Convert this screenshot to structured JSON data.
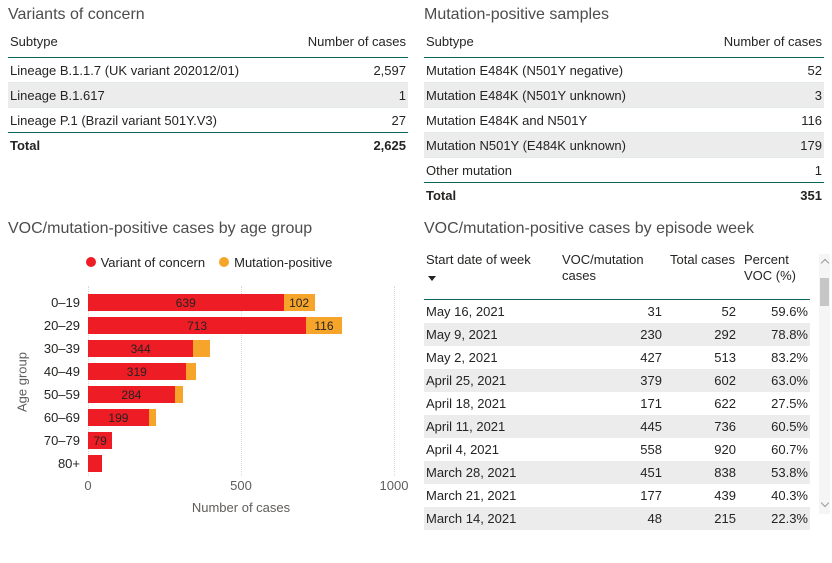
{
  "colors": {
    "accent_line_teal": "#0e6360",
    "voc_red": "#ee1c25",
    "mutation_orange": "#f7a52a",
    "row_alt_bg": "#ececec",
    "title_text": "#4d4d4d",
    "body_text": "#252423",
    "axis_text": "#605e5c"
  },
  "chart_data": [
    {
      "id": "voc_table",
      "type": "table",
      "title": "Variants of concern",
      "columns": [
        "Subtype",
        "Number of cases"
      ],
      "rows": [
        [
          "Lineage B.1.1.7 (UK variant 202012/01)",
          "2,597"
        ],
        [
          "Lineage B.1.617",
          "1"
        ],
        [
          "Lineage P.1 (Brazil variant 501Y.V3)",
          "27"
        ]
      ],
      "total_row": [
        "Total",
        "2,625"
      ]
    },
    {
      "id": "mutation_table",
      "type": "table",
      "title": "Mutation-positive samples",
      "columns": [
        "Subtype",
        "Number of cases"
      ],
      "rows": [
        [
          "Mutation E484K (N501Y negative)",
          "52"
        ],
        [
          "Mutation E484K (N501Y unknown)",
          "3"
        ],
        [
          "Mutation E484K and N501Y",
          "116"
        ],
        [
          "Mutation N501Y (E484K unknown)",
          "179"
        ],
        [
          "Other mutation",
          "1"
        ]
      ],
      "total_row": [
        "Total",
        "351"
      ]
    },
    {
      "id": "age_chart",
      "type": "bar",
      "orientation": "horizontal",
      "stacked": true,
      "title": "VOC/mutation-positive cases by age group",
      "categories": [
        "0–19",
        "20–29",
        "30–39",
        "40–49",
        "50–59",
        "60–69",
        "70–79",
        "80+"
      ],
      "series": [
        {
          "name": "Variant of concern",
          "color": "#ee1c25",
          "values": [
            639,
            713,
            344,
            319,
            284,
            199,
            79,
            45
          ],
          "bar_labels": [
            "639",
            "713",
            "344",
            "319",
            "284",
            "199",
            "79",
            ""
          ]
        },
        {
          "name": "Mutation-positive",
          "color": "#f7a52a",
          "values": [
            102,
            116,
            55,
            33,
            27,
            25,
            0,
            0
          ],
          "bar_labels": [
            "102",
            "116",
            "",
            "",
            "",
            "",
            "",
            ""
          ]
        }
      ],
      "xlabel": "Number of cases",
      "ylabel": "Age group",
      "xlim": [
        0,
        1000
      ],
      "x_ticks": [
        0,
        500,
        1000
      ],
      "gridlines": "vertical-dotted",
      "legend_position": "top"
    },
    {
      "id": "week_table",
      "type": "table",
      "title": "VOC/mutation-positive cases by episode week",
      "columns": [
        "Start date of week",
        "VOC/mutation cases",
        "Total cases",
        "Percent VOC (%)"
      ],
      "sorted_by": "Start date of week",
      "sort_direction": "descending",
      "rows": [
        [
          "May 16, 2021",
          "31",
          "52",
          "59.6%"
        ],
        [
          "May 9, 2021",
          "230",
          "292",
          "78.8%"
        ],
        [
          "May 2, 2021",
          "427",
          "513",
          "83.2%"
        ],
        [
          "April 25, 2021",
          "379",
          "602",
          "63.0%"
        ],
        [
          "April 18, 2021",
          "171",
          "622",
          "27.5%"
        ],
        [
          "April 11, 2021",
          "445",
          "736",
          "60.5%"
        ],
        [
          "April 4, 2021",
          "558",
          "920",
          "60.7%"
        ],
        [
          "March 28, 2021",
          "451",
          "838",
          "53.8%"
        ],
        [
          "March 21, 2021",
          "177",
          "439",
          "40.3%"
        ],
        [
          "March 14, 2021",
          "48",
          "215",
          "22.3%"
        ]
      ]
    }
  ]
}
